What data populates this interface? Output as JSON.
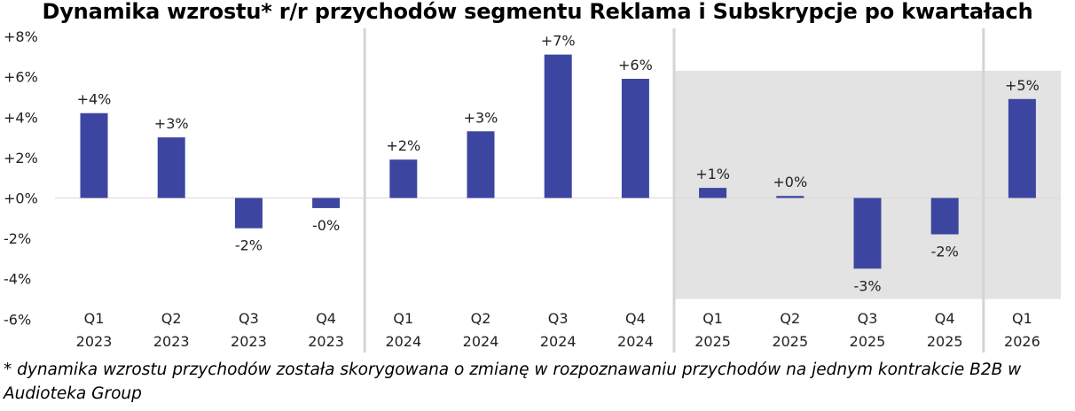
{
  "chart_data": {
    "type": "bar",
    "title": "Dynamika wzrostu* r/r przychodów segmentu Reklama i Subskrypcje po kwartałach",
    "xlabel": "",
    "ylabel": "",
    "ylim": [
      -6,
      8
    ],
    "y_ticks": [
      {
        "value": 8,
        "label": "+8%"
      },
      {
        "value": 6,
        "label": "+6%"
      },
      {
        "value": 4,
        "label": "+4%"
      },
      {
        "value": 2,
        "label": "+2%"
      },
      {
        "value": 0,
        "label": "+0%"
      },
      {
        "value": -2,
        "label": "-2%"
      },
      {
        "value": -4,
        "label": "-4%"
      },
      {
        "value": -6,
        "label": "-6%"
      }
    ],
    "categories": [
      {
        "quarter": "Q1",
        "year": "2023"
      },
      {
        "quarter": "Q2",
        "year": "2023"
      },
      {
        "quarter": "Q3",
        "year": "2023"
      },
      {
        "quarter": "Q4",
        "year": "2023"
      },
      {
        "quarter": "Q1",
        "year": "2024"
      },
      {
        "quarter": "Q2",
        "year": "2024"
      },
      {
        "quarter": "Q3",
        "year": "2024"
      },
      {
        "quarter": "Q4",
        "year": "2024"
      },
      {
        "quarter": "Q1",
        "year": "2025"
      },
      {
        "quarter": "Q2",
        "year": "2025"
      },
      {
        "quarter": "Q3",
        "year": "2025"
      },
      {
        "quarter": "Q4",
        "year": "2025"
      },
      {
        "quarter": "Q1",
        "year": "2026"
      }
    ],
    "values": [
      4.2,
      3.0,
      -1.5,
      -0.5,
      1.9,
      3.3,
      7.1,
      5.9,
      0.5,
      0.1,
      -3.5,
      -1.8,
      4.9
    ],
    "data_labels": [
      "+4%",
      "+3%",
      "-2%",
      "-0%",
      "+2%",
      "+3%",
      "+7%",
      "+6%",
      "+1%",
      "+0%",
      "-3%",
      "-2%",
      "+5%"
    ],
    "bar_color": "#3c46a0",
    "grid": false,
    "legend": "none",
    "year_dividers_after": [
      3,
      7,
      11
    ],
    "divider_color": "#d4d4d4",
    "shaded_region": {
      "from_category": 8,
      "to_category": 12,
      "y_from": -5,
      "y_to": 6.3,
      "color": "#e3e3e3"
    }
  },
  "footnote": "* dynamika wzrostu przychodów została skorygowana o zmianę w rozpoznawaniu przychodów na jednym kontrakcie B2B w Audioteka Group"
}
